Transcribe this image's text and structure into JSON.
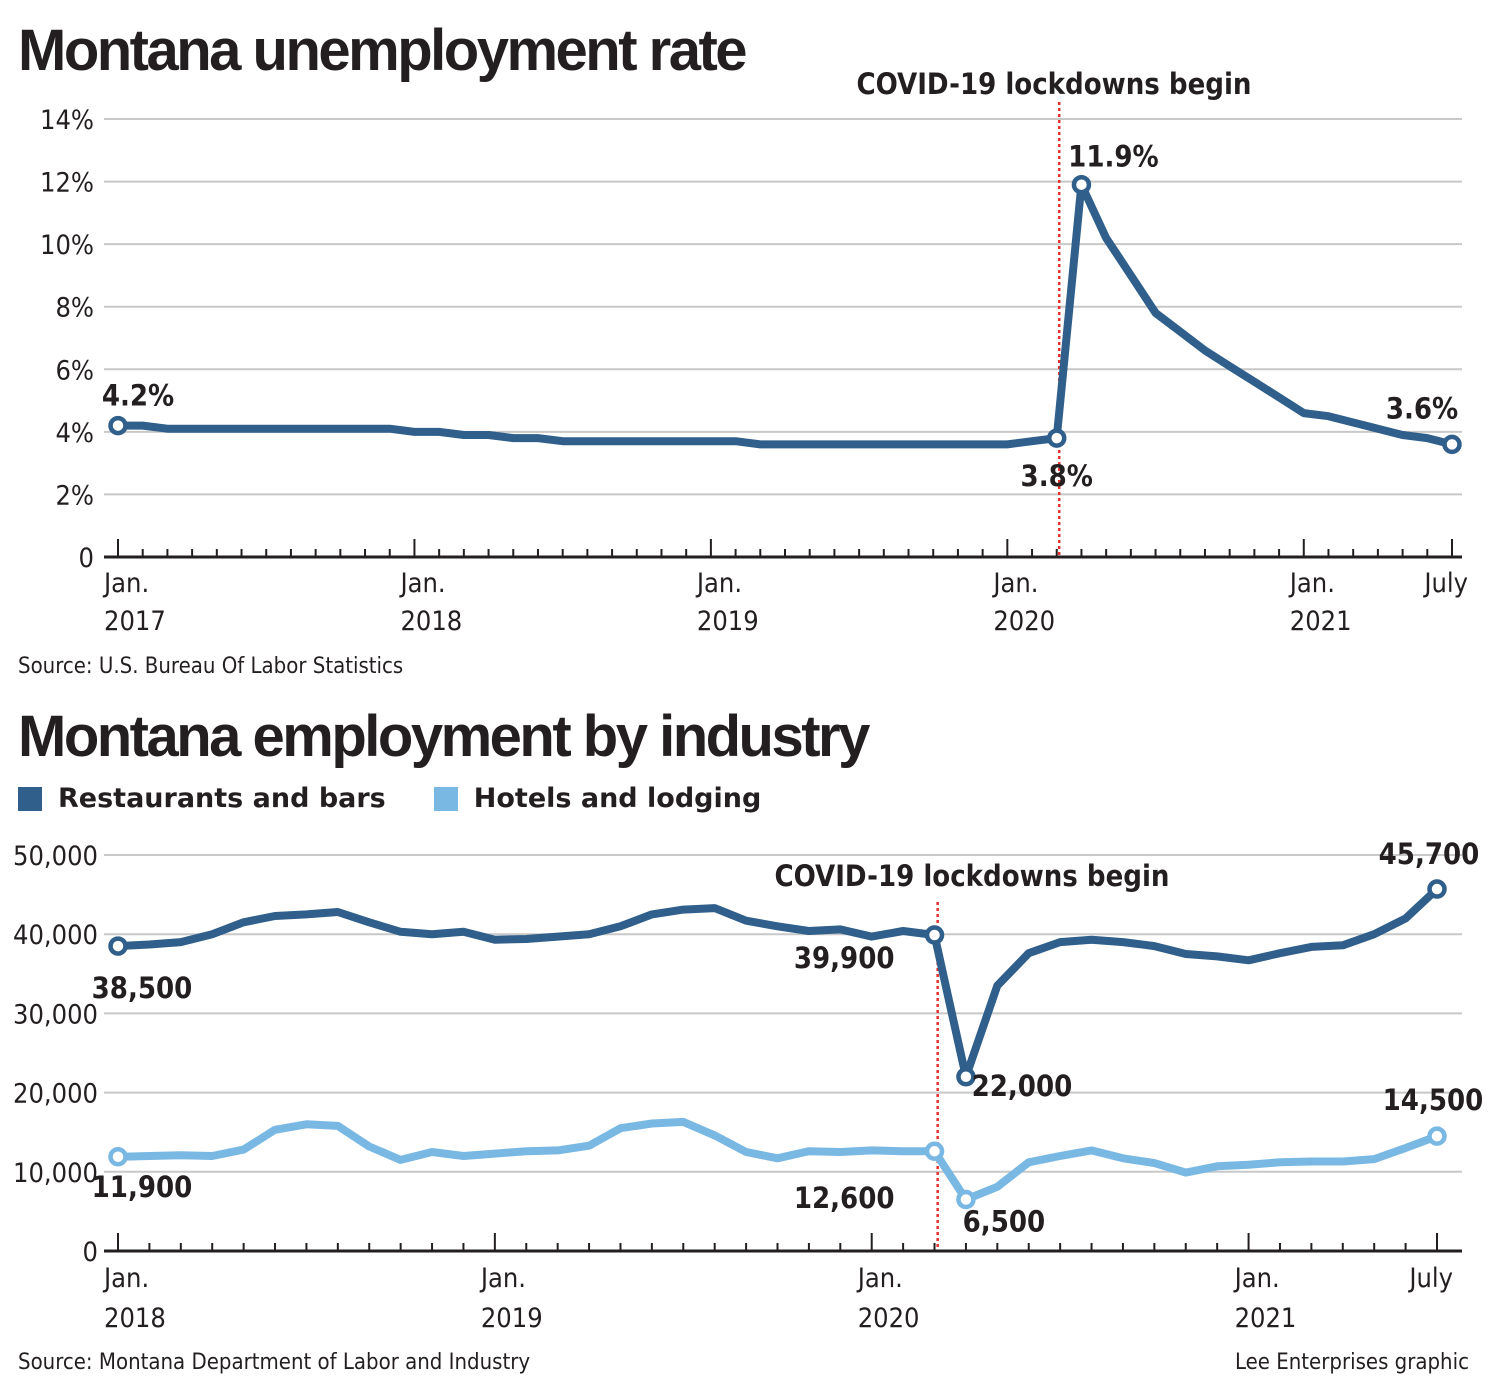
{
  "charts": [
    {
      "id": "unemployment",
      "title": "Montana unemployment rate",
      "source": "Source: U.S. Bureau Of Labor Statistics",
      "annotation": "COVID-19 lockdowns begin"
    },
    {
      "id": "employment",
      "title": "Montana employment by industry",
      "source": "Source: Montana Department of Labor and Industry",
      "annotation": "COVID-19 lockdowns begin"
    }
  ],
  "credit": "Lee Enterprises graphic",
  "colors": {
    "dark": "#2f5f8a",
    "light": "#7ab8e4",
    "marker": "#e0322e",
    "grid": "#c8c8c8",
    "text": "#231f20"
  },
  "chart_data": [
    {
      "type": "line",
      "title": "Montana unemployment rate",
      "x_unit": "months since Jan. 2017",
      "xlim": [
        0,
        54
      ],
      "ylim": [
        0,
        14
      ],
      "yticks": [
        {
          "value": 0,
          "label": "0"
        },
        {
          "value": 2,
          "label": "2%"
        },
        {
          "value": 4,
          "label": "4%"
        },
        {
          "value": 6,
          "label": "6%"
        },
        {
          "value": 8,
          "label": "8%"
        },
        {
          "value": 10,
          "label": "10%"
        },
        {
          "value": 12,
          "label": "12%"
        },
        {
          "value": 14,
          "label": "14%"
        }
      ],
      "xticks": [
        {
          "value": 0,
          "label": [
            "Jan.",
            "2017"
          ]
        },
        {
          "value": 12,
          "label": [
            "Jan.",
            "2018"
          ]
        },
        {
          "value": 24,
          "label": [
            "Jan.",
            "2019"
          ]
        },
        {
          "value": 36,
          "label": [
            "Jan.",
            "2020"
          ]
        },
        {
          "value": 48,
          "label": [
            "Jan.",
            "2021"
          ]
        },
        {
          "value": 54,
          "label": [
            "July"
          ]
        }
      ],
      "marker_x": 38.1,
      "series": [
        {
          "name": "Unemployment rate",
          "color": "#2f5f8a",
          "x": [
            0,
            1,
            2,
            3,
            4,
            5,
            6,
            7,
            8,
            9,
            10,
            11,
            12,
            13,
            14,
            15,
            16,
            17,
            18,
            19,
            20,
            21,
            22,
            23,
            24,
            25,
            26,
            27,
            28,
            29,
            30,
            31,
            32,
            33,
            34,
            35,
            36,
            37,
            38,
            39,
            40,
            41,
            42,
            43,
            44,
            45,
            46,
            47,
            48,
            49,
            50,
            51,
            52,
            53,
            54
          ],
          "values": [
            4.2,
            4.2,
            4.1,
            4.1,
            4.1,
            4.1,
            4.1,
            4.1,
            4.1,
            4.1,
            4.1,
            4.1,
            4.0,
            4.0,
            3.9,
            3.9,
            3.8,
            3.8,
            3.7,
            3.7,
            3.7,
            3.7,
            3.7,
            3.7,
            3.7,
            3.7,
            3.6,
            3.6,
            3.6,
            3.6,
            3.6,
            3.6,
            3.6,
            3.6,
            3.6,
            3.6,
            3.6,
            3.7,
            3.8,
            11.9,
            10.2,
            9.0,
            7.8,
            7.2,
            6.6,
            6.1,
            5.6,
            5.1,
            4.6,
            4.5,
            4.3,
            4.1,
            3.9,
            3.8,
            3.6
          ]
        }
      ],
      "point_labels": [
        {
          "x": 0,
          "y": 4.2,
          "label": "4.2%"
        },
        {
          "x": 38,
          "y": 3.8,
          "label": "3.8%"
        },
        {
          "x": 39,
          "y": 11.9,
          "label": "11.9%"
        },
        {
          "x": 54,
          "y": 3.6,
          "label": "3.6%"
        }
      ]
    },
    {
      "type": "line",
      "title": "Montana employment by industry",
      "x_unit": "months since Jan. 2018",
      "xlim": [
        0,
        42
      ],
      "ylim": [
        0,
        50000
      ],
      "yticks": [
        {
          "value": 0,
          "label": "0"
        },
        {
          "value": 10000,
          "label": "10,000"
        },
        {
          "value": 20000,
          "label": "20,000"
        },
        {
          "value": 30000,
          "label": "30,000"
        },
        {
          "value": 40000,
          "label": "40,000"
        },
        {
          "value": 50000,
          "label": "50,000"
        }
      ],
      "xticks": [
        {
          "value": 0,
          "label": [
            "Jan.",
            "2018"
          ]
        },
        {
          "value": 12,
          "label": [
            "Jan.",
            "2019"
          ]
        },
        {
          "value": 24,
          "label": [
            "Jan.",
            "2020"
          ]
        },
        {
          "value": 36,
          "label": [
            "Jan.",
            "2021"
          ]
        },
        {
          "value": 42,
          "label": [
            "July"
          ]
        }
      ],
      "marker_x": 26.1,
      "series": [
        {
          "name": "Restaurants and bars",
          "color": "#2f5f8a",
          "x": [
            0,
            1,
            2,
            3,
            4,
            5,
            6,
            7,
            8,
            9,
            10,
            11,
            12,
            13,
            14,
            15,
            16,
            17,
            18,
            19,
            20,
            21,
            22,
            23,
            24,
            25,
            26,
            27,
            28,
            29,
            30,
            31,
            32,
            33,
            34,
            35,
            36,
            37,
            38,
            39,
            40,
            41,
            42
          ],
          "values": [
            38500,
            38700,
            39000,
            40000,
            41500,
            42300,
            42500,
            42800,
            41500,
            40300,
            40000,
            40300,
            39300,
            39400,
            39700,
            40000,
            41000,
            42500,
            43100,
            43300,
            41700,
            41000,
            40400,
            40600,
            39700,
            40400,
            39900,
            22000,
            33500,
            37600,
            39000,
            39300,
            39000,
            38500,
            37500,
            37200,
            36700,
            37600,
            38400,
            38600,
            40000,
            42000,
            45700
          ]
        },
        {
          "name": "Hotels and lodging",
          "color": "#7ab8e4",
          "x": [
            0,
            1,
            2,
            3,
            4,
            5,
            6,
            7,
            8,
            9,
            10,
            11,
            12,
            13,
            14,
            15,
            16,
            17,
            18,
            19,
            20,
            21,
            22,
            23,
            24,
            25,
            26,
            27,
            28,
            29,
            30,
            31,
            32,
            33,
            34,
            35,
            36,
            37,
            38,
            39,
            40,
            41,
            42
          ],
          "values": [
            11900,
            12000,
            12100,
            12000,
            12800,
            15300,
            16000,
            15800,
            13200,
            11500,
            12500,
            12000,
            12300,
            12600,
            12700,
            13300,
            15500,
            16100,
            16300,
            14600,
            12500,
            11700,
            12600,
            12500,
            12700,
            12600,
            12600,
            6500,
            8100,
            11200,
            12000,
            12700,
            11700,
            11100,
            9900,
            10700,
            10900,
            11200,
            11300,
            11300,
            11600,
            13000,
            14500
          ]
        }
      ],
      "point_labels": [
        {
          "series": 0,
          "x": 0,
          "y": 38500,
          "label": "38,500"
        },
        {
          "series": 0,
          "x": 26,
          "y": 39900,
          "label": "39,900"
        },
        {
          "series": 0,
          "x": 27,
          "y": 22000,
          "label": "22,000"
        },
        {
          "series": 0,
          "x": 42,
          "y": 45700,
          "label": "45,700"
        },
        {
          "series": 1,
          "x": 0,
          "y": 11900,
          "label": "11,900"
        },
        {
          "series": 1,
          "x": 26,
          "y": 12600,
          "label": "12,600"
        },
        {
          "series": 1,
          "x": 27,
          "y": 6500,
          "label": "6,500"
        },
        {
          "series": 1,
          "x": 42,
          "y": 14500,
          "label": "14,500"
        }
      ]
    }
  ]
}
